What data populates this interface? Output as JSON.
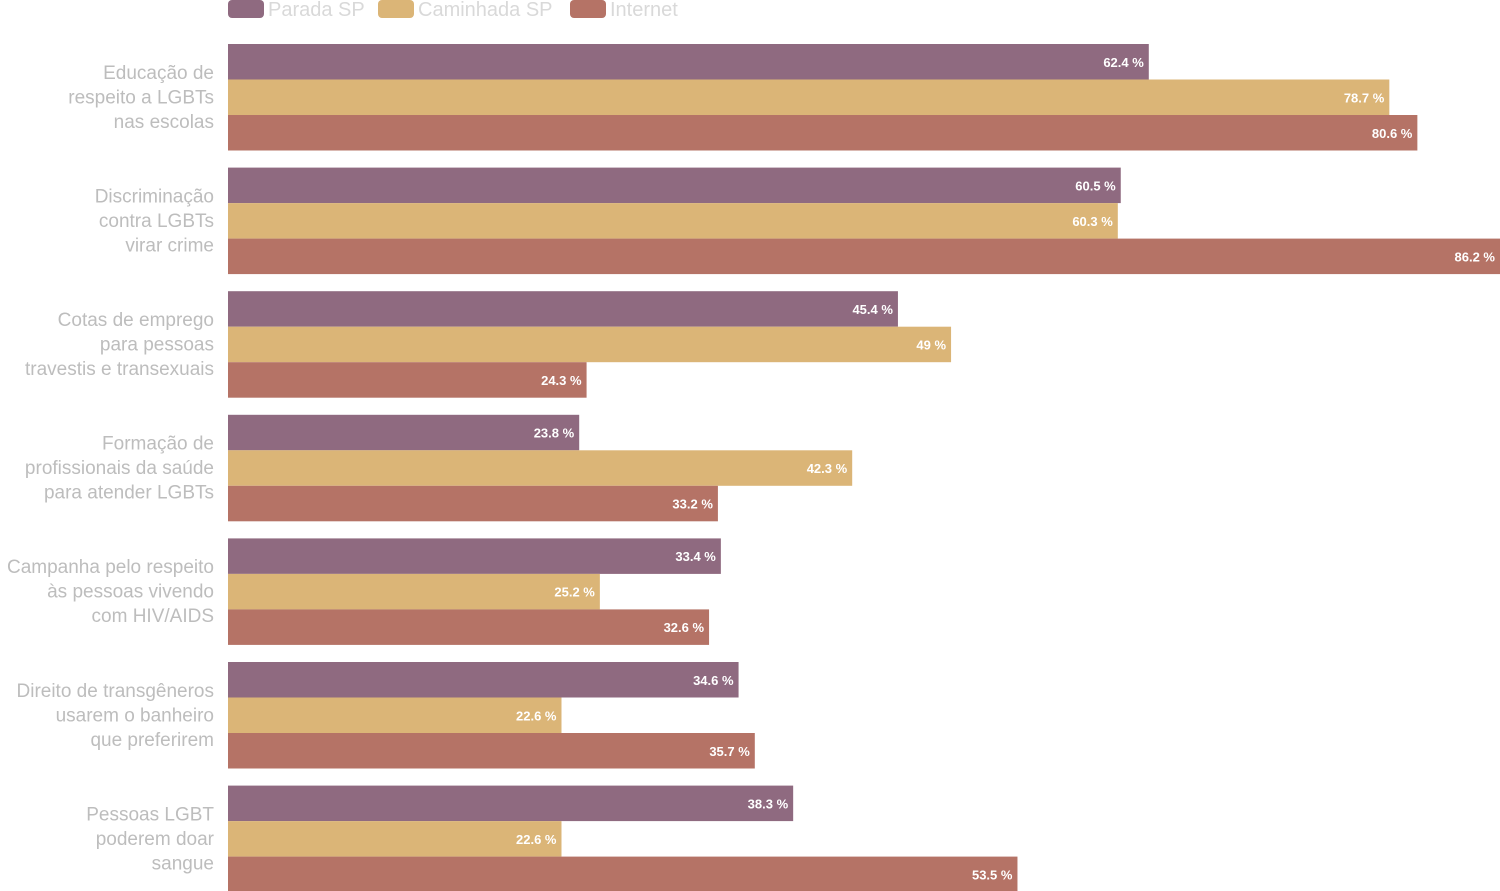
{
  "chart_data": {
    "type": "bar",
    "orientation": "horizontal",
    "legend_position": "top-left",
    "grid": false,
    "xlim": [
      0,
      86.2
    ],
    "value_suffix": " %",
    "categories": [
      [
        "Educação de",
        "respeito a LGBTs",
        "nas escolas"
      ],
      [
        "Discriminação",
        "contra LGBTs",
        "virar crime"
      ],
      [
        "Cotas de emprego",
        "para pessoas",
        "travestis e transexuais"
      ],
      [
        "Formação de",
        "profissionais da saúde",
        "para atender LGBTs"
      ],
      [
        "Campanha pelo respeito",
        "às pessoas vivendo",
        "com HIV/AIDS"
      ],
      [
        "Direito de transgêneros",
        "usarem o banheiro",
        "que preferirem"
      ],
      [
        "Pessoas LGBT",
        "poderem doar",
        "sangue"
      ]
    ],
    "series": [
      {
        "name": "Parada SP",
        "color": "#8f6a80",
        "values": [
          62.4,
          60.5,
          45.4,
          23.8,
          33.4,
          34.6,
          38.3
        ]
      },
      {
        "name": "Caminhada SP",
        "color": "#dbb577",
        "values": [
          78.7,
          60.3,
          49,
          42.3,
          25.2,
          22.6,
          22.6
        ]
      },
      {
        "name": "Internet",
        "color": "#b57366",
        "values": [
          80.6,
          86.2,
          24.3,
          33.2,
          32.6,
          35.7,
          53.5
        ]
      }
    ]
  }
}
